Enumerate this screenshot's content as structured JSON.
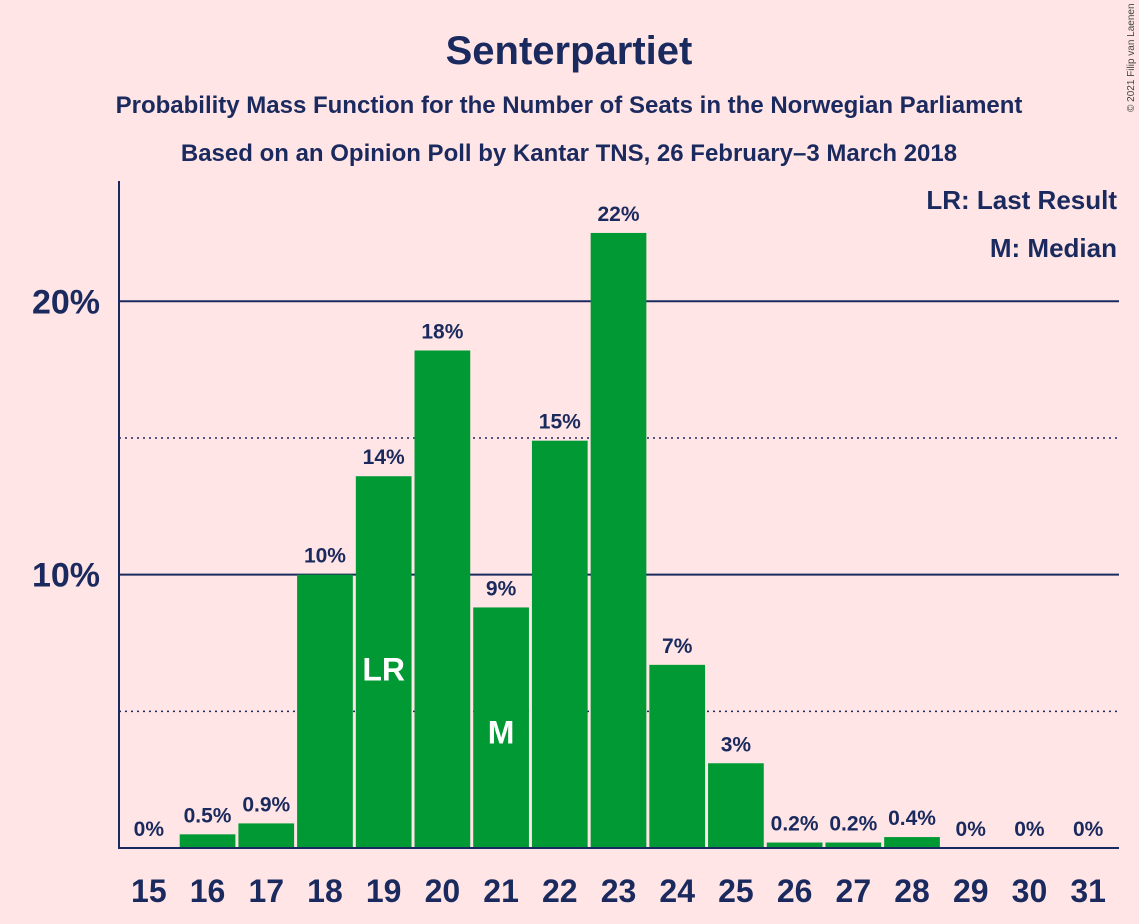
{
  "title": "Senterpartiet",
  "subtitle_line1": "Probability Mass Function for the Number of Seats in the Norwegian Parliament",
  "subtitle_line2": "Based on an Opinion Poll by Kantar TNS, 26 February–3 March 2018",
  "legend": {
    "lr": "LR: Last Result",
    "m": "M: Median"
  },
  "copyright": "© 2021 Filip van Laenen",
  "colors": {
    "background": "#ffe5e5",
    "bar": "#009933",
    "text": "#1a2a5e"
  },
  "chart_data": {
    "type": "bar",
    "categories": [
      "15",
      "16",
      "17",
      "18",
      "19",
      "20",
      "21",
      "22",
      "23",
      "24",
      "25",
      "26",
      "27",
      "28",
      "29",
      "30",
      "31"
    ],
    "values": [
      0,
      0.5,
      0.9,
      10.0,
      13.6,
      18.2,
      8.8,
      14.9,
      22.5,
      6.7,
      3.1,
      0.2,
      0.2,
      0.4,
      0,
      0,
      0
    ],
    "value_labels": [
      "0%",
      "0.5%",
      "0.9%",
      "10%",
      "14%",
      "18%",
      "9%",
      "15%",
      "22%",
      "7%",
      "3%",
      "0.2%",
      "0.2%",
      "0.4%",
      "0%",
      "0%",
      "0%"
    ],
    "markers": {
      "19": "LR",
      "21": "M"
    },
    "yticks": [
      {
        "value": 10,
        "label": "10%"
      },
      {
        "value": 20,
        "label": "20%"
      }
    ],
    "minor_gridlines": [
      5,
      15
    ],
    "ylim": [
      0,
      24.4
    ],
    "legend_position": "top-right"
  }
}
